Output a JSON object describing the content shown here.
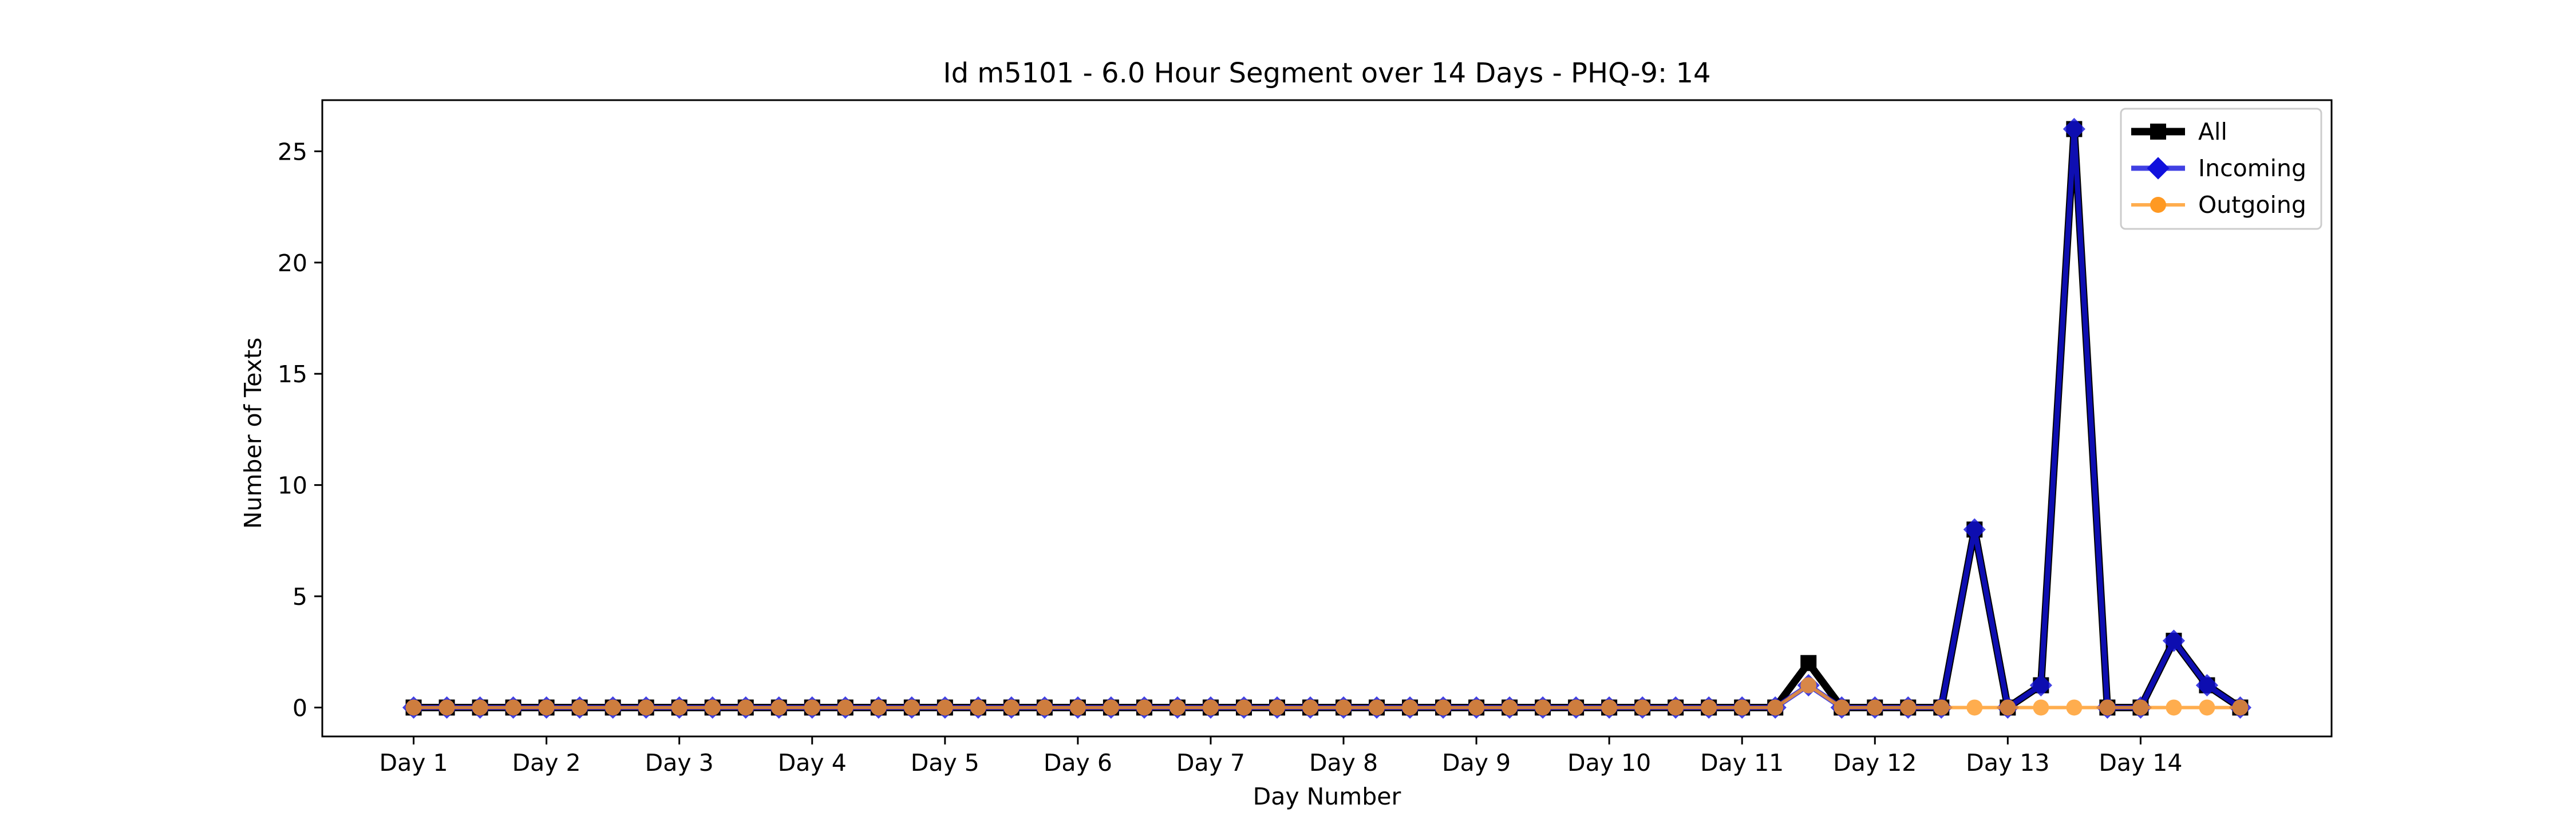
{
  "chart_data": {
    "type": "line",
    "title": "Id m5101 - 6.0 Hour Segment over 14 Days - PHQ-9: 14",
    "xlabel": "Day Number",
    "ylabel": "Number of Texts",
    "ylim": [
      -1.3,
      27.3
    ],
    "xlim": [
      -2.75,
      57.75
    ],
    "yticks": [
      0,
      5,
      10,
      15,
      20,
      25
    ],
    "xticks": [
      {
        "pos": 0,
        "label": "Day 1"
      },
      {
        "pos": 4,
        "label": "Day 2"
      },
      {
        "pos": 8,
        "label": "Day 3"
      },
      {
        "pos": 12,
        "label": "Day 4"
      },
      {
        "pos": 16,
        "label": "Day 5"
      },
      {
        "pos": 20,
        "label": "Day 6"
      },
      {
        "pos": 24,
        "label": "Day 7"
      },
      {
        "pos": 28,
        "label": "Day 8"
      },
      {
        "pos": 32,
        "label": "Day 9"
      },
      {
        "pos": 36,
        "label": "Day 10"
      },
      {
        "pos": 40,
        "label": "Day 11"
      },
      {
        "pos": 44,
        "label": "Day 12"
      },
      {
        "pos": 48,
        "label": "Day 13"
      },
      {
        "pos": 52,
        "label": "Day 14"
      }
    ],
    "grid": false,
    "legend_position": "top-right",
    "series": [
      {
        "name": "All",
        "color": "#000000",
        "marker": "square",
        "values": [
          0,
          0,
          0,
          0,
          0,
          0,
          0,
          0,
          0,
          0,
          0,
          0,
          0,
          0,
          0,
          0,
          0,
          0,
          0,
          0,
          0,
          0,
          0,
          0,
          0,
          0,
          0,
          0,
          0,
          0,
          0,
          0,
          0,
          0,
          0,
          0,
          0,
          0,
          0,
          0,
          0,
          0,
          2,
          0,
          0,
          0,
          0,
          8,
          0,
          1,
          26,
          0,
          0,
          3,
          1,
          0
        ]
      },
      {
        "name": "Incoming",
        "color": "#1111dd",
        "marker": "diamond",
        "values": [
          0,
          0,
          0,
          0,
          0,
          0,
          0,
          0,
          0,
          0,
          0,
          0,
          0,
          0,
          0,
          0,
          0,
          0,
          0,
          0,
          0,
          0,
          0,
          0,
          0,
          0,
          0,
          0,
          0,
          0,
          0,
          0,
          0,
          0,
          0,
          0,
          0,
          0,
          0,
          0,
          0,
          0,
          1,
          0,
          0,
          0,
          0,
          8,
          0,
          1,
          26,
          0,
          0,
          3,
          1,
          0
        ]
      },
      {
        "name": "Outgoing",
        "color": "#ff9922",
        "marker": "circle",
        "values": [
          0,
          0,
          0,
          0,
          0,
          0,
          0,
          0,
          0,
          0,
          0,
          0,
          0,
          0,
          0,
          0,
          0,
          0,
          0,
          0,
          0,
          0,
          0,
          0,
          0,
          0,
          0,
          0,
          0,
          0,
          0,
          0,
          0,
          0,
          0,
          0,
          0,
          0,
          0,
          0,
          0,
          0,
          1,
          0,
          0,
          0,
          0,
          0,
          0,
          0,
          0,
          0,
          0,
          0,
          0,
          0
        ]
      }
    ]
  }
}
